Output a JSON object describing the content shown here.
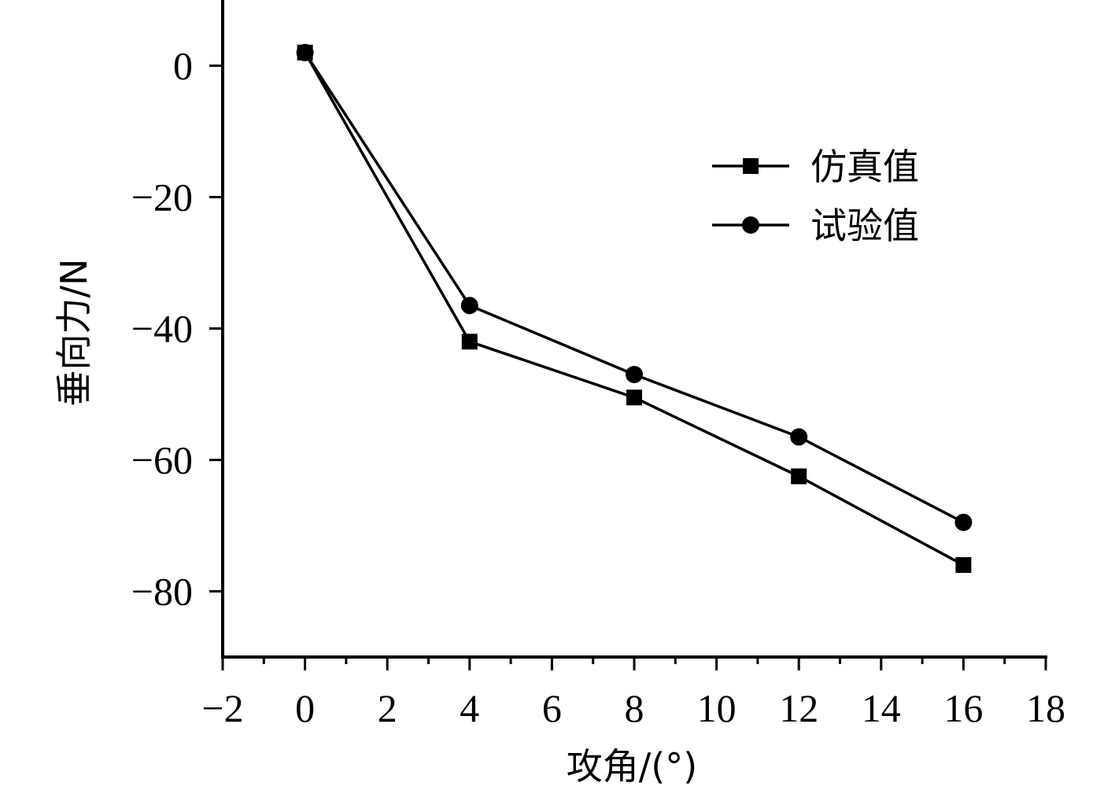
{
  "chart_data": {
    "type": "line",
    "title": "",
    "xlabel": "攻角/(°)",
    "ylabel": "垂向力/N",
    "xlim": [
      -2,
      18
    ],
    "ylim": [
      -90,
      10
    ],
    "x_ticks": [
      -2,
      0,
      2,
      4,
      6,
      8,
      10,
      12,
      14,
      16,
      18
    ],
    "x_tick_labels": [
      "−2",
      "0",
      "2",
      "4",
      "6",
      "8",
      "10",
      "12",
      "14",
      "16",
      "18"
    ],
    "y_ticks": [
      0,
      -20,
      -40,
      -60,
      -80
    ],
    "y_tick_labels": [
      "0",
      "−20",
      "−40",
      "−60",
      "−80"
    ],
    "grid": false,
    "legend_position": "top-right",
    "x": [
      0,
      4,
      8,
      12,
      16
    ],
    "series": [
      {
        "name": "仿真值",
        "marker": "square",
        "color": "#000000",
        "values": [
          2,
          -42,
          -50.5,
          -62.5,
          -76
        ]
      },
      {
        "name": "试验值",
        "marker": "circle",
        "color": "#000000",
        "values": [
          2,
          -36.5,
          -47,
          -56.5,
          -69.5
        ]
      }
    ]
  }
}
